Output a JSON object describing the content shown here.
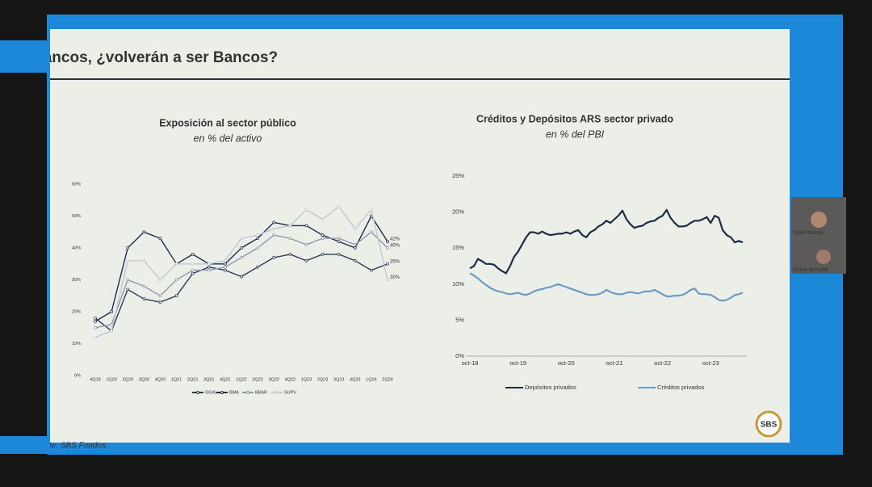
{
  "slide_title": "Bancos, ¿volverán a ser Bancos?",
  "source": "Fuente: SBS Fondos.",
  "webcam": {
    "name1": "Juan alonso",
    "name2": "Clave Bursátil"
  },
  "logo": "SBS",
  "chart_data": [
    {
      "type": "line",
      "title": "Exposición al sector público",
      "subtitle": "en % del activo",
      "categories": [
        "4Q19",
        "1Q20",
        "2Q20",
        "3Q20",
        "4Q20",
        "1Q21",
        "2Q21",
        "3Q21",
        "4Q21",
        "1Q22",
        "2Q22",
        "3Q22",
        "4Q22",
        "1Q23",
        "2Q23",
        "3Q23",
        "4Q23",
        "1Q24",
        "2Q24"
      ],
      "ylim": [
        0,
        60
      ],
      "yticks": [
        {
          "value": 0,
          "label": "0%"
        },
        {
          "value": 10,
          "label": "10%"
        },
        {
          "value": 20,
          "label": "20%"
        },
        {
          "value": 30,
          "label": "30%"
        },
        {
          "value": 40,
          "label": "40%"
        },
        {
          "value": 50,
          "label": "50%"
        },
        {
          "value": 60,
          "label": "60%"
        }
      ],
      "grid": false,
      "markers": true,
      "series": [
        {
          "name": "GGAL",
          "color": "#2b3a55",
          "values": [
            18,
            14,
            27,
            24,
            23,
            25,
            32,
            34,
            33,
            31,
            34,
            37,
            38,
            36,
            38,
            38,
            36,
            33,
            35
          ],
          "value_labels": [
            null,
            null,
            null,
            null,
            null,
            null,
            null,
            null,
            null,
            null,
            null,
            null,
            null,
            null,
            null,
            null,
            null,
            null,
            "35%"
          ]
        },
        {
          "name": "BMA",
          "color": "#1f2d4a",
          "values": [
            17,
            20,
            40,
            45,
            43,
            35,
            38,
            35,
            35,
            40,
            43,
            48,
            47,
            47,
            44,
            42,
            40,
            50,
            42
          ],
          "value_labels": [
            null,
            null,
            null,
            null,
            null,
            null,
            null,
            null,
            null,
            null,
            null,
            null,
            null,
            null,
            null,
            null,
            null,
            null,
            "42%"
          ]
        },
        {
          "name": "BBAR",
          "color": "#8f9aa6",
          "values": [
            15,
            16,
            30,
            28,
            25,
            30,
            33,
            33,
            34,
            37,
            40,
            44,
            43,
            41,
            43,
            43,
            41,
            45,
            40
          ],
          "value_labels": [
            null,
            null,
            null,
            null,
            null,
            null,
            null,
            null,
            null,
            null,
            null,
            null,
            null,
            null,
            null,
            null,
            null,
            null,
            "40%"
          ]
        },
        {
          "name": "SUPV",
          "color": "#c0c7cf",
          "values": [
            12,
            14,
            36,
            36,
            30,
            35,
            35,
            35,
            36,
            43,
            44,
            46,
            47,
            52,
            49,
            53,
            46,
            52,
            30
          ],
          "value_labels": [
            null,
            null,
            null,
            null,
            null,
            null,
            null,
            null,
            null,
            null,
            null,
            null,
            null,
            null,
            null,
            null,
            null,
            null,
            "30%"
          ]
        }
      ]
    },
    {
      "type": "line",
      "title": "Créditos y Depósitos ARS sector privado",
      "subtitle": "en % del PBI",
      "categories": [
        "oct-18",
        null,
        null,
        null,
        null,
        null,
        null,
        null,
        null,
        null,
        null,
        null,
        "oct-19",
        null,
        null,
        null,
        null,
        null,
        null,
        null,
        null,
        null,
        null,
        null,
        "oct-20",
        null,
        null,
        null,
        null,
        null,
        null,
        null,
        null,
        null,
        null,
        null,
        "oct-21",
        null,
        null,
        null,
        null,
        null,
        null,
        null,
        null,
        null,
        null,
        null,
        "oct-22",
        null,
        null,
        null,
        null,
        null,
        null,
        null,
        null,
        null,
        null,
        null,
        "oct-23",
        null,
        null,
        null,
        null,
        null,
        null,
        null,
        null
      ],
      "ylim": [
        0,
        25
      ],
      "yticks": [
        {
          "value": 0,
          "label": "0%"
        },
        {
          "value": 5,
          "label": "5%"
        },
        {
          "value": 10,
          "label": "10%"
        },
        {
          "value": 15,
          "label": "15%"
        },
        {
          "value": 20,
          "label": "20%"
        },
        {
          "value": 25,
          "label": "25%"
        }
      ],
      "grid": false,
      "markers": false,
      "series": [
        {
          "name": "Depósitos privados",
          "color": "#1e2b45",
          "values": [
            12.2,
            12.5,
            13.5,
            13.2,
            12.8,
            12.8,
            12.7,
            12.2,
            11.8,
            11.5,
            12.5,
            13.8,
            14.5,
            15.5,
            16.5,
            17.2,
            17.2,
            17.0,
            17.3,
            17.0,
            16.8,
            16.9,
            17.0,
            17.0,
            17.2,
            17.0,
            17.3,
            17.5,
            16.8,
            16.5,
            17.2,
            17.5,
            18.0,
            18.3,
            18.8,
            18.5,
            19.0,
            19.5,
            20.2,
            19.0,
            18.3,
            17.8,
            18.0,
            18.1,
            18.5,
            18.7,
            18.8,
            19.2,
            19.5,
            20.3,
            19.2,
            18.5,
            18.0,
            18.0,
            18.1,
            18.5,
            18.8,
            18.8,
            19.0,
            19.3,
            18.5,
            19.5,
            19.2,
            17.5,
            16.8,
            16.5,
            15.8,
            16.0,
            15.8
          ]
        },
        {
          "name": "Créditos privados",
          "color": "#6d9bc3",
          "values": [
            11.5,
            11.2,
            10.8,
            10.3,
            9.9,
            9.5,
            9.2,
            9.0,
            8.9,
            8.7,
            8.6,
            8.7,
            8.8,
            8.6,
            8.5,
            8.7,
            9.0,
            9.2,
            9.3,
            9.5,
            9.6,
            9.8,
            10.0,
            9.8,
            9.6,
            9.4,
            9.2,
            9.0,
            8.8,
            8.6,
            8.5,
            8.5,
            8.6,
            8.8,
            9.2,
            8.9,
            8.7,
            8.6,
            8.6,
            8.8,
            8.9,
            8.8,
            8.7,
            8.9,
            9.0,
            9.0,
            9.2,
            8.9,
            8.6,
            8.3,
            8.3,
            8.4,
            8.4,
            8.5,
            8.8,
            9.2,
            9.4,
            8.7,
            8.6,
            8.6,
            8.5,
            8.2,
            7.8,
            7.7,
            7.8,
            8.1,
            8.5,
            8.6,
            8.8
          ]
        }
      ]
    }
  ]
}
